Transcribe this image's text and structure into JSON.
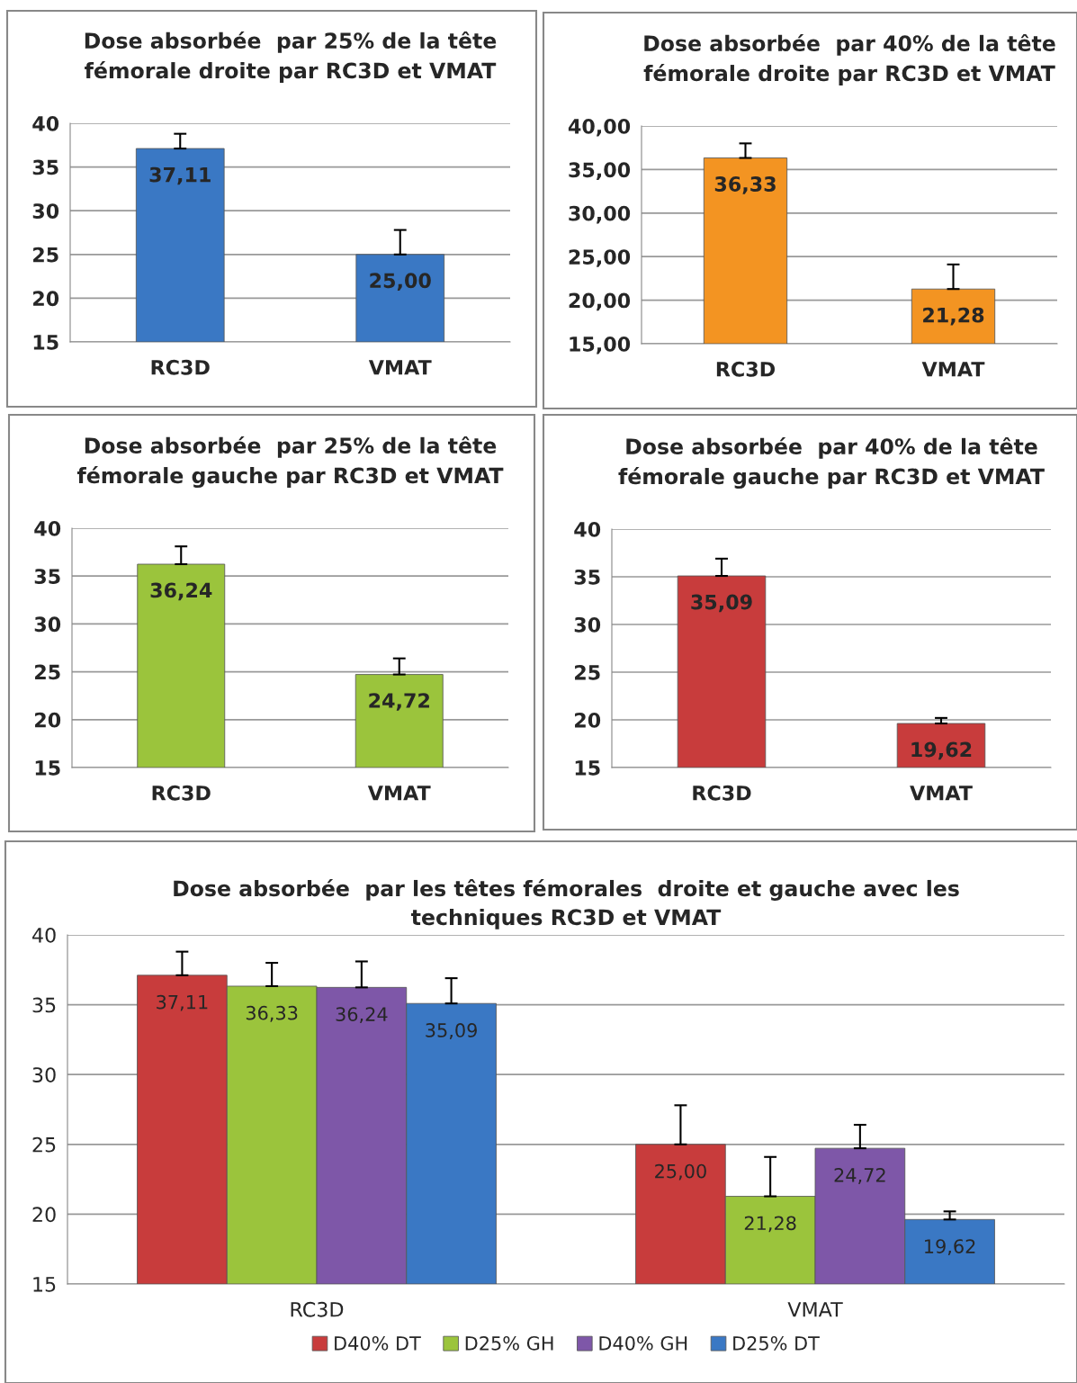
{
  "chart_data": [
    {
      "type": "bar",
      "title": "Dose absorbée  par 25% de la tête\nfémorale droite par RC3D et VMAT",
      "categories": [
        "RC3D",
        "VMAT"
      ],
      "series": [
        {
          "color": "#3a78c4",
          "values": [
            37.11,
            25.0
          ],
          "errors": [
            [
              37.11,
              38.8
            ],
            [
              25.0,
              27.8
            ]
          ],
          "value_labels": [
            "37,11",
            "25,00"
          ]
        }
      ],
      "ylim": [
        15,
        40
      ],
      "yticks": [
        15,
        20,
        25,
        30,
        35,
        40
      ],
      "grid": "y",
      "legend": false
    },
    {
      "type": "bar",
      "title": "Dose absorbée  par 40% de la tête\nfémorale droite par RC3D et VMAT",
      "categories": [
        "RC3D",
        "VMAT"
      ],
      "series": [
        {
          "color": "#f39422",
          "values": [
            36.33,
            21.28
          ],
          "errors": [
            [
              36.33,
              38.0
            ],
            [
              21.28,
              24.1
            ]
          ],
          "value_labels": [
            "36,33",
            "21,28"
          ]
        }
      ],
      "ylim": [
        15,
        40
      ],
      "yticks": [
        {
          "value": 15,
          "label": "15,00"
        },
        {
          "value": 20,
          "label": "20,00"
        },
        {
          "value": 25,
          "label": "25,00"
        },
        {
          "value": 30,
          "label": "30,00"
        },
        {
          "value": 35,
          "label": "35,00"
        },
        {
          "value": 40,
          "label": "40,00"
        }
      ],
      "grid": "y",
      "legend": false
    },
    {
      "type": "bar",
      "title": "Dose absorbée  par 25% de la tête\nfémorale gauche par RC3D et VMAT",
      "categories": [
        "RC3D",
        "VMAT"
      ],
      "series": [
        {
          "color": "#9bc43c",
          "values": [
            36.24,
            24.72
          ],
          "errors": [
            [
              36.24,
              38.1
            ],
            [
              24.72,
              26.4
            ]
          ],
          "value_labels": [
            "36,24",
            "24,72"
          ]
        }
      ],
      "ylim": [
        15,
        40
      ],
      "yticks": [
        15,
        20,
        25,
        30,
        35,
        40
      ],
      "grid": "y",
      "legend": false
    },
    {
      "type": "bar",
      "title": "Dose absorbée  par 40% de la tête\nfémorale gauche par RC3D et VMAT",
      "categories": [
        "RC3D",
        "VMAT"
      ],
      "series": [
        {
          "color": "#c83c3c",
          "values": [
            35.09,
            19.62
          ],
          "errors": [
            [
              35.09,
              36.9
            ],
            [
              19.62,
              20.2
            ]
          ],
          "value_labels": [
            "35,09",
            "19,62"
          ]
        }
      ],
      "ylim": [
        15,
        40
      ],
      "yticks": [
        15,
        20,
        25,
        30,
        35,
        40
      ],
      "grid": "y",
      "legend": false
    },
    {
      "type": "bar",
      "title": "Dose absorbée  par les têtes fémorales  droite et gauche avec les\ntechniques RC3D et VMAT",
      "categories": [
        "RC3D",
        "VMAT"
      ],
      "series": [
        {
          "name": "D40% DT",
          "color": "#c83c3c",
          "values": [
            37.11,
            25.0
          ],
          "errors": [
            [
              37.11,
              38.8
            ],
            [
              25.0,
              27.8
            ]
          ],
          "value_labels": [
            "37,11",
            "25,00"
          ]
        },
        {
          "name": "D25% GH",
          "color": "#9bc43c",
          "values": [
            36.33,
            21.28
          ],
          "errors": [
            [
              36.33,
              38.0
            ],
            [
              21.28,
              24.1
            ]
          ],
          "value_labels": [
            "36,33",
            "21,28"
          ]
        },
        {
          "name": "D40% GH",
          "color": "#7e57a8",
          "values": [
            36.24,
            24.72
          ],
          "errors": [
            [
              36.24,
              38.1
            ],
            [
              24.72,
              26.4
            ]
          ],
          "value_labels": [
            "36,24",
            "24,72"
          ]
        },
        {
          "name": "D25% DT",
          "color": "#3a78c4",
          "values": [
            35.09,
            19.62
          ],
          "errors": [
            [
              35.09,
              36.9
            ],
            [
              19.62,
              20.2
            ]
          ],
          "value_labels": [
            "35,09",
            "19,62"
          ]
        }
      ],
      "ylim": [
        15,
        40
      ],
      "yticks": [
        15,
        20,
        25,
        30,
        35,
        40
      ],
      "grid": "y",
      "legend": "bottom"
    }
  ]
}
